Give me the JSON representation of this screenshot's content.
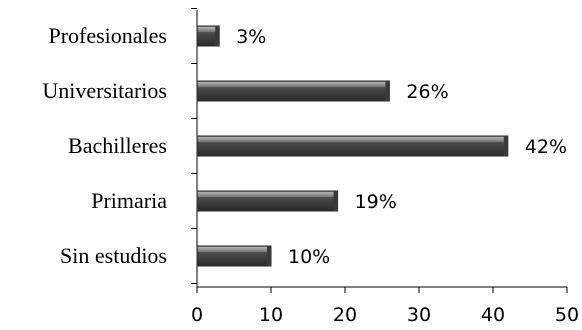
{
  "chart_data": {
    "type": "bar",
    "orientation": "horizontal",
    "categories": [
      "Sin estudios",
      "Primaria",
      "Bachilleres",
      "Universitarios",
      "Profesionales"
    ],
    "values": [
      10,
      19,
      42,
      26,
      3
    ],
    "value_labels": [
      "10%",
      "19%",
      "42%",
      "26%",
      "3%"
    ],
    "xlim": [
      0,
      50
    ],
    "x_ticks": [
      "0",
      "10",
      "20",
      "30",
      "40",
      "50"
    ],
    "grid": false,
    "legend": "none",
    "bar_color": "#555555"
  }
}
